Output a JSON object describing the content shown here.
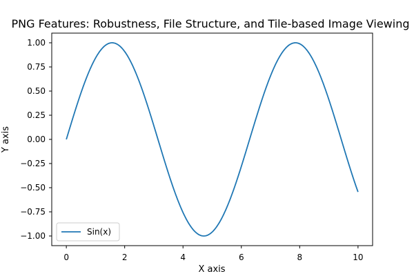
{
  "chart_data": {
    "type": "line",
    "title": "PNG Features: Robustness, File Structure, and Tile-based Image Viewing",
    "xlabel": "X axis",
    "ylabel": "Y axis",
    "xlim": [
      -0.5,
      10.5
    ],
    "ylim": [
      -1.1,
      1.1
    ],
    "xticks": [
      0,
      2,
      4,
      6,
      8,
      10
    ],
    "yticks": [
      -1.0,
      -0.75,
      -0.5,
      -0.25,
      0.0,
      0.25,
      0.5,
      0.75,
      1.0
    ],
    "xtick_labels": [
      "0",
      "2",
      "4",
      "6",
      "8",
      "10"
    ],
    "ytick_labels": [
      "−1.00",
      "−0.75",
      "−0.50",
      "−0.25",
      "0.00",
      "0.25",
      "0.50",
      "0.75",
      "1.00"
    ],
    "grid": false,
    "legend": {
      "position": "lower-left",
      "entries": [
        "Sin(x)"
      ]
    },
    "series": [
      {
        "name": "Sin(x)",
        "color": "#1f77b4",
        "x": [
          0,
          0.5,
          1,
          1.5,
          2,
          2.5,
          3,
          3.5,
          4,
          4.5,
          5,
          5.5,
          6,
          6.5,
          7,
          7.5,
          8,
          8.5,
          9,
          9.5,
          10
        ],
        "y": [
          0.0,
          0.479,
          0.841,
          0.997,
          0.909,
          0.598,
          0.141,
          -0.351,
          -0.757,
          -0.978,
          -0.959,
          -0.706,
          -0.279,
          0.215,
          0.657,
          0.938,
          0.989,
          0.798,
          0.412,
          -0.075,
          -0.544
        ]
      }
    ]
  }
}
